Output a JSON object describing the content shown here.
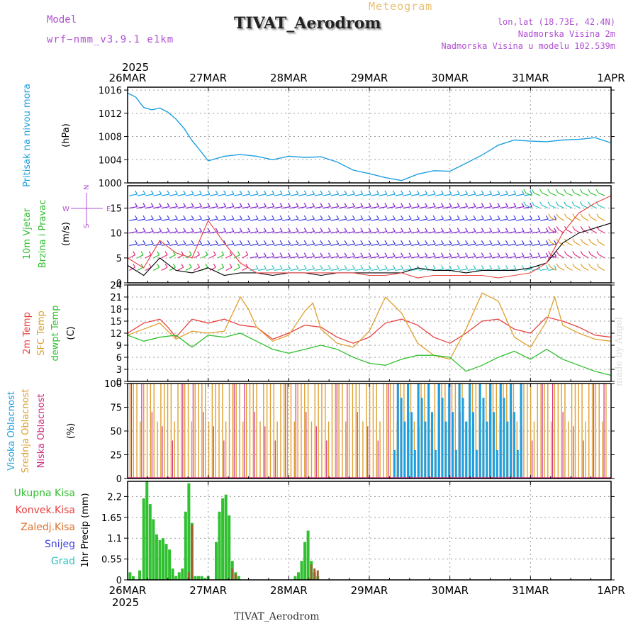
{
  "header": {
    "model_label": "Model",
    "model_name": "wrf−nmm_v3.9.1  e1km",
    "product": "Meteogram",
    "station": "TIVAT_Aerodrom",
    "lonlat": "lon,lat (18.73E, 42.4N)",
    "altitude": "Nadmorska Visina 2m",
    "model_altitude": "Nadmorska Visina u modelu 102.539m"
  },
  "footer": {
    "station": "TIVAT_Aerodrom",
    "credit": "made by Angel"
  },
  "time_axis": {
    "year": "2025",
    "ticks": [
      "26MAR",
      "27MAR",
      "28MAR",
      "29MAR",
      "30MAR",
      "31MAR",
      "1APR"
    ]
  },
  "colors": {
    "pressure": "#1ea0e0",
    "t2m": "#e84040",
    "tsfc": "#e0a030",
    "dewpt": "#30c030",
    "cloud_high": "#1ea0e0",
    "cloud_mid": "#e0a030",
    "cloud_low": "#d03080",
    "precip_total": "#30c030",
    "precip_conv": "#e84040",
    "precip_frz": "#e0702a",
    "snow": "#4040e0",
    "hail": "#30c0c0",
    "wind_label": "#30c030",
    "wind_dir": "#b050d0"
  },
  "chart_data": [
    {
      "type": "line",
      "ylabel": [
        "Pritisak na nivou mora",
        "(hPa)"
      ],
      "ylim": [
        1000,
        1016.5
      ],
      "yticks": [
        1000,
        1004,
        1008,
        1012,
        1016
      ],
      "grid": true,
      "series": [
        {
          "key": "pressure",
          "x": [
            0,
            0.1,
            0.2,
            0.3,
            0.4,
            0.5,
            0.6,
            0.7,
            0.8,
            0.9,
            1.0,
            1.2,
            1.4,
            1.6,
            1.8,
            2.0,
            2.2,
            2.4,
            2.6,
            2.8,
            3.0,
            3.2,
            3.4,
            3.6,
            3.8,
            4.0,
            4.2,
            4.4,
            4.6,
            4.8,
            5.0,
            5.2,
            5.4,
            5.6,
            5.8,
            6.0
          ],
          "values": [
            1015.5,
            1014.8,
            1013.0,
            1012.6,
            1012.9,
            1012.2,
            1011.0,
            1009.4,
            1007.3,
            1005.6,
            1003.8,
            1004.6,
            1004.9,
            1004.6,
            1004.0,
            1004.6,
            1004.4,
            1004.5,
            1003.6,
            1002.2,
            1001.6,
            1000.9,
            1000.4,
            1001.5,
            1002.1,
            1002.0,
            1003.4,
            1004.8,
            1006.5,
            1007.4,
            1007.2,
            1007.1,
            1007.4,
            1007.5,
            1007.8,
            1006.9
          ]
        }
      ]
    },
    {
      "type": "line",
      "ylabel": [
        "10m Vjetar",
        "Brzina i Pravac",
        "(m/s)"
      ],
      "direction_legend": [
        "N",
        "W",
        "E",
        "S"
      ],
      "ylim": [
        0,
        19.5
      ],
      "yticks": [
        0,
        5,
        10,
        15
      ],
      "grid": true,
      "series": [
        {
          "key": "wind_speed",
          "x": [
            0,
            0.2,
            0.4,
            0.6,
            0.8,
            1.0,
            1.2,
            1.4,
            1.6,
            1.8,
            2.0,
            2.2,
            2.4,
            2.6,
            2.8,
            3.0,
            3.2,
            3.4,
            3.6,
            3.8,
            4.0,
            4.2,
            4.4,
            4.6,
            4.8,
            5.0,
            5.2,
            5.4,
            5.6,
            5.8,
            6.0
          ],
          "values": [
            3.5,
            1.5,
            5.0,
            2.5,
            2.0,
            3.0,
            1.5,
            2.0,
            2.0,
            1.5,
            2.0,
            2.0,
            1.5,
            2.0,
            2.0,
            2.0,
            2.0,
            2.0,
            3.0,
            2.5,
            2.5,
            2.0,
            2.5,
            2.5,
            2.5,
            3.0,
            4.0,
            8.0,
            10.0,
            11.0,
            12.0
          ]
        },
        {
          "key": "wind_gust",
          "x": [
            0,
            0.2,
            0.4,
            0.6,
            0.8,
            1.0,
            1.2,
            1.4,
            1.6,
            1.8,
            2.0,
            2.2,
            2.4,
            2.6,
            2.8,
            3.0,
            3.2,
            3.4,
            3.6,
            3.8,
            4.0,
            4.2,
            4.4,
            4.6,
            4.8,
            5.0,
            5.2,
            5.4,
            5.6,
            5.8,
            6.0
          ],
          "values": [
            5.0,
            3.0,
            8.5,
            6.0,
            5.0,
            12.5,
            8.0,
            4.0,
            2.0,
            2.0,
            2.0,
            2.0,
            2.0,
            2.0,
            2.0,
            1.5,
            1.5,
            2.0,
            1.0,
            1.5,
            1.5,
            1.5,
            1.5,
            1.0,
            1.5,
            2.0,
            4.0,
            10.0,
            14.0,
            16.0,
            17.5
          ]
        }
      ]
    },
    {
      "type": "line",
      "ylabel": [
        "2m Temp",
        "SFC Temp",
        "dewpt Temp",
        "(C)"
      ],
      "ylim": [
        0,
        24
      ],
      "yticks": [
        0,
        3,
        6,
        9,
        12,
        15,
        18,
        21,
        24
      ],
      "grid": true,
      "series": [
        {
          "key": "t2m",
          "x": [
            0,
            0.2,
            0.4,
            0.5,
            0.6,
            0.8,
            1.0,
            1.2,
            1.4,
            1.6,
            1.8,
            2.0,
            2.2,
            2.4,
            2.6,
            2.8,
            3.0,
            3.2,
            3.4,
            3.6,
            3.8,
            4.0,
            4.2,
            4.4,
            4.6,
            4.8,
            5.0,
            5.2,
            5.4,
            5.6,
            5.8,
            6.0
          ],
          "values": [
            12.0,
            14.5,
            15.5,
            13.5,
            11.0,
            15.5,
            14.5,
            15.5,
            14.0,
            13.5,
            10.5,
            12.0,
            14.0,
            13.5,
            11.0,
            9.5,
            11.0,
            14.5,
            15.5,
            14.0,
            11.0,
            9.5,
            12.0,
            15.0,
            15.5,
            13.0,
            12.0,
            16.0,
            15.0,
            13.5,
            11.5,
            11.0
          ]
        },
        {
          "key": "tsfc",
          "x": [
            0,
            0.2,
            0.4,
            0.5,
            0.6,
            0.8,
            1.0,
            1.2,
            1.4,
            1.5,
            1.6,
            1.8,
            2.0,
            2.2,
            2.3,
            2.4,
            2.6,
            2.8,
            3.0,
            3.2,
            3.4,
            3.6,
            3.8,
            4.0,
            4.2,
            4.4,
            4.6,
            4.8,
            5.0,
            5.2,
            5.3,
            5.4,
            5.6,
            5.8,
            6.0
          ],
          "values": [
            11.5,
            13.0,
            14.5,
            12.5,
            10.5,
            12.5,
            12.0,
            12.5,
            21.0,
            18.0,
            13.5,
            10.0,
            11.5,
            17.5,
            19.5,
            13.0,
            9.5,
            8.5,
            12.5,
            21.0,
            17.0,
            9.5,
            6.5,
            5.5,
            13.0,
            22.0,
            20.0,
            11.0,
            8.5,
            15.0,
            21.0,
            14.0,
            12.0,
            10.5,
            10.0
          ]
        },
        {
          "key": "dewpt",
          "x": [
            0,
            0.2,
            0.4,
            0.6,
            0.8,
            1.0,
            1.2,
            1.4,
            1.6,
            1.8,
            2.0,
            2.2,
            2.4,
            2.6,
            2.8,
            3.0,
            3.2,
            3.4,
            3.6,
            3.8,
            4.0,
            4.2,
            4.4,
            4.6,
            4.8,
            5.0,
            5.2,
            5.4,
            5.6,
            5.8,
            6.0
          ],
          "values": [
            11.5,
            10.0,
            11.0,
            11.5,
            8.5,
            11.5,
            11.0,
            12.0,
            10.0,
            8.0,
            7.0,
            8.0,
            9.0,
            8.0,
            6.0,
            4.5,
            4.0,
            5.5,
            6.5,
            6.5,
            6.0,
            2.5,
            4.0,
            6.0,
            7.5,
            5.5,
            8.0,
            5.5,
            4.0,
            2.5,
            1.5
          ]
        }
      ]
    },
    {
      "type": "bar",
      "ylabel": [
        "Visoka Oblacnost",
        "Srednja Oblacnost",
        "Niska Oblacnost",
        "(%)"
      ],
      "ylim": [
        0,
        100
      ],
      "yticks": [
        0,
        25,
        50,
        75,
        100
      ],
      "grid": true,
      "description_values": {
        "mid_cloud_percent": "frequent 100% spikes throughout the period",
        "high_cloud_percent": "up to 100% mainly between 29MAR and 31MAR",
        "low_cloud_percent": "scattered spikes up to 100%"
      }
    },
    {
      "type": "bar",
      "ylabel": [
        "1hr Precip (mm)"
      ],
      "legend": [
        "Ukupna Kisa",
        "Konvek.Kisa",
        "Zaledj.Kisa",
        "Snijeg",
        "Grad"
      ],
      "ylim": [
        0,
        2.6
      ],
      "yticks": [
        0,
        0.55,
        1.1,
        1.65,
        2.2
      ],
      "grid": true,
      "series": [
        {
          "key": "total_rain",
          "x": [
            0.03,
            0.07,
            0.15,
            0.2,
            0.24,
            0.28,
            0.32,
            0.36,
            0.4,
            0.44,
            0.48,
            0.52,
            0.56,
            0.6,
            0.64,
            0.68,
            0.72,
            0.76,
            0.8,
            0.84,
            0.88,
            0.92,
            0.96,
            1.0,
            1.1,
            1.14,
            1.18,
            1.22,
            1.26,
            1.3,
            1.34,
            1.38,
            2.08,
            2.12,
            2.16,
            2.2,
            2.24,
            2.28,
            2.32,
            2.36
          ],
          "values": [
            0.2,
            0.1,
            0.25,
            2.15,
            2.6,
            2.0,
            1.6,
            1.2,
            1.05,
            1.1,
            0.95,
            0.8,
            0.3,
            0.1,
            0.2,
            0.3,
            1.8,
            2.55,
            1.5,
            0.1,
            0.1,
            0.1,
            0.05,
            0.1,
            1.0,
            1.8,
            2.15,
            2.25,
            1.7,
            0.5,
            0.2,
            0.1,
            0.1,
            0.2,
            0.5,
            1.0,
            1.3,
            0.5,
            0.2,
            0.1
          ]
        },
        {
          "key": "conv_rain",
          "x": [
            0.76,
            0.8,
            1.3,
            1.34,
            2.28,
            2.32,
            2.36
          ],
          "values": [
            0.2,
            1.45,
            0.3,
            0.15,
            0.4,
            0.3,
            0.25
          ]
        }
      ]
    }
  ]
}
